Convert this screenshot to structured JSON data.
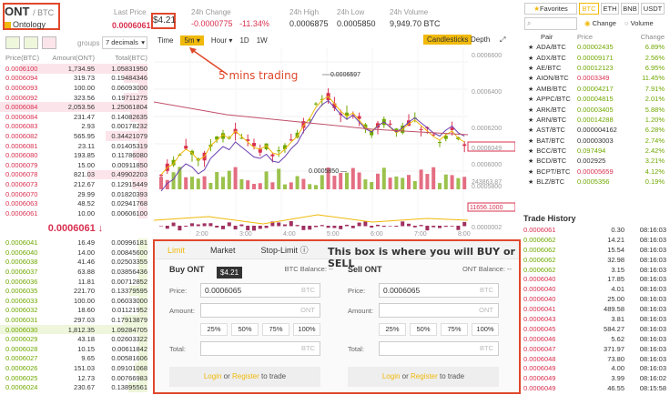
{
  "header": {
    "symbol": "ONT",
    "quote": "/ BTC",
    "name": "Ontology",
    "last_price_label": "Last Price",
    "last_price": "0.0006061",
    "last_price_usd": "$4.21",
    "change_label": "24h Change",
    "change": "-0.0000775",
    "change_pct": "-11.34%",
    "high_label": "24h High",
    "high": "0.0006875",
    "low_label": "24h Low",
    "low": "0.0005850",
    "volume_label": "24h Volume",
    "volume": "9,949.70 BTC"
  },
  "orderbook": {
    "groups_label": "groups",
    "decimals": "7 decimals",
    "headers": [
      "Price(BTC)",
      "Amount(ONT)",
      "Total(BTC)"
    ],
    "asks": [
      [
        "0.0006100",
        "1,734.95",
        "1.05831950"
      ],
      [
        "0.0006094",
        "319.73",
        "0.19484346"
      ],
      [
        "0.0006093",
        "100.00",
        "0.06093000"
      ],
      [
        "0.0006092",
        "323.56",
        "0.19711275"
      ],
      [
        "0.0006084",
        "2,053.56",
        "1.25061804"
      ],
      [
        "0.0006084",
        "231.47",
        "0.14082635"
      ],
      [
        "0.0006083",
        "2.93",
        "0.00178232"
      ],
      [
        "0.0006082",
        "565.95",
        "0.34421079"
      ],
      [
        "0.0006081",
        "23.11",
        "0.01405319"
      ],
      [
        "0.0006080",
        "193.85",
        "0.11786080"
      ],
      [
        "0.0006079",
        "15.00",
        "0.00911850"
      ],
      [
        "0.0006078",
        "821.03",
        "0.49902203"
      ],
      [
        "0.0006073",
        "212.67",
        "0.12915449"
      ],
      [
        "0.0006070",
        "29.99",
        "0.01820393"
      ],
      [
        "0.0006063",
        "48.52",
        "0.02941768"
      ],
      [
        "0.0006061",
        "10.00",
        "0.00606100"
      ]
    ],
    "mid_price": "0.0006061 ↓",
    "bids": [
      [
        "0.0006041",
        "16.49",
        "0.00996181"
      ],
      [
        "0.0006040",
        "14.00",
        "0.00845600"
      ],
      [
        "0.0006038",
        "41.46",
        "0.02503355"
      ],
      [
        "0.0006037",
        "63.88",
        "0.03856436"
      ],
      [
        "0.0006036",
        "11.81",
        "0.00712852"
      ],
      [
        "0.0006035",
        "221.70",
        "0.13379595"
      ],
      [
        "0.0006033",
        "100.00",
        "0.06033000"
      ],
      [
        "0.0006032",
        "18.60",
        "0.01121952"
      ],
      [
        "0.0006031",
        "297.03",
        "0.17913879"
      ],
      [
        "0.0006030",
        "1,812.35",
        "1.09284705"
      ],
      [
        "0.0006029",
        "43.18",
        "0.02603322"
      ],
      [
        "0.0006028",
        "10.15",
        "0.00611842"
      ],
      [
        "0.0006027",
        "9.65",
        "0.00581606"
      ],
      [
        "0.0006026",
        "151.03",
        "0.09101068"
      ],
      [
        "0.0006025",
        "12.73",
        "0.00766983"
      ],
      [
        "0.0006024",
        "230.67",
        "0.13895561"
      ]
    ]
  },
  "chart": {
    "tabs": [
      "Time",
      "5m",
      "Hour",
      "1D",
      "1W"
    ],
    "right_tabs": [
      "Candlesticks",
      "Depth"
    ],
    "axis": [
      "0.0006600",
      "0.0006400",
      "0.0006200",
      "0.0006049",
      "0.0006000",
      "0.0005800"
    ],
    "labels": [
      "0.0006597",
      "0.0005850"
    ],
    "vol_axis": "243863.87",
    "macd_axis": "11656.1000",
    "macd_axis2": "0.0000002",
    "times": [
      "2:00",
      "3:00",
      "4:00",
      "5:00",
      "6:00",
      "7:00",
      "8:00"
    ]
  },
  "annotations": {
    "chart": "5 mins trading",
    "trade": "This box is where you will BUY or SELL"
  },
  "trade": {
    "tabs": [
      "Limit",
      "Market",
      "Stop-Limit"
    ],
    "tooltip": "$4.21",
    "buy": {
      "title": "Buy ONT",
      "balance": "BTC Balance: --",
      "price_label": "Price:",
      "price": "0.0006065",
      "price_unit": "BTC",
      "amount_label": "Amount:",
      "amount_unit": "ONT",
      "total_label": "Total:",
      "total_unit": "BTC"
    },
    "sell": {
      "title": "Sell ONT",
      "balance": "ONT Balance: --",
      "price_label": "Price:",
      "price": "0.0006065",
      "price_unit": "BTC",
      "amount_label": "Amount:",
      "amount_unit": "ONT",
      "total_label": "Total:",
      "total_unit": "BTC"
    },
    "percents": [
      "25%",
      "50%",
      "75%",
      "100%"
    ],
    "login": "Login",
    "or": " or ",
    "register": "Register",
    "to_trade": " to trade"
  },
  "markets": {
    "favorites": "Favorites",
    "tabs": [
      "BTC",
      "ETH",
      "BNB",
      "USDT"
    ],
    "change_opt": "Change",
    "volume_opt": "Volume",
    "headers": [
      "Pair",
      "Price",
      "Change"
    ],
    "rows": [
      [
        "ADA/BTC",
        "0.00002435",
        "6.89%"
      ],
      [
        "ADX/BTC",
        "0.00009171",
        "2.56%"
      ],
      [
        "AE/BTC",
        "0.00012123",
        "6.95%"
      ],
      [
        "AION/BTC",
        "0.0003349",
        "11.45%"
      ],
      [
        "AMB/BTC",
        "0.00004217",
        "7.91%"
      ],
      [
        "APPC/BTC",
        "0.00004815",
        "2.01%"
      ],
      [
        "ARK/BTC",
        "0.00003405",
        "5.88%"
      ],
      [
        "ARN/BTC",
        "0.00014288",
        "1.20%"
      ],
      [
        "AST/BTC",
        "0.000004162",
        "6.28%"
      ],
      [
        "BAT/BTC",
        "0.00003003",
        "2.74%"
      ],
      [
        "BCC/BTC",
        "0.097494",
        "2.42%"
      ],
      [
        "BCD/BTC",
        "0.002925",
        "3.21%"
      ],
      [
        "BCPT/BTC",
        "0.00005659",
        "4.12%"
      ],
      [
        "BLZ/BTC",
        "0.0005356",
        "0.19%"
      ]
    ],
    "colors": [
      "g",
      "g",
      "g",
      "r",
      "g",
      "g",
      "g",
      "g",
      "k",
      "k",
      "g",
      "k",
      "r",
      "g"
    ]
  },
  "history": {
    "title": "Trade History",
    "rows": [
      [
        "0.0006061",
        "0.30",
        "08:16:03",
        "r"
      ],
      [
        "0.0006062",
        "14.21",
        "08:16:03",
        "g"
      ],
      [
        "0.0006062",
        "15.54",
        "08:16:03",
        "g"
      ],
      [
        "0.0006062",
        "32.98",
        "08:16:03",
        "g"
      ],
      [
        "0.0006062",
        "3.15",
        "08:16:03",
        "g"
      ],
      [
        "0.0006040",
        "17.85",
        "08:16:03",
        "r"
      ],
      [
        "0.0006040",
        "4.01",
        "08:16:03",
        "r"
      ],
      [
        "0.0006040",
        "25.00",
        "08:16:03",
        "r"
      ],
      [
        "0.0006041",
        "489.58",
        "08:16:03",
        "r"
      ],
      [
        "0.0006043",
        "3.81",
        "08:16:03",
        "r"
      ],
      [
        "0.0006045",
        "584.27",
        "08:16:03",
        "r"
      ],
      [
        "0.0006046",
        "5.62",
        "08:16:03",
        "r"
      ],
      [
        "0.0006047",
        "371.97",
        "08:16:03",
        "r"
      ],
      [
        "0.0006048",
        "73.80",
        "08:16:03",
        "r"
      ],
      [
        "0.0006049",
        "4.00",
        "08:16:03",
        "r"
      ],
      [
        "0.0006049",
        "3.99",
        "08:16:02",
        "r"
      ],
      [
        "0.0006049",
        "46.55",
        "08:15:58",
        "r"
      ]
    ]
  }
}
